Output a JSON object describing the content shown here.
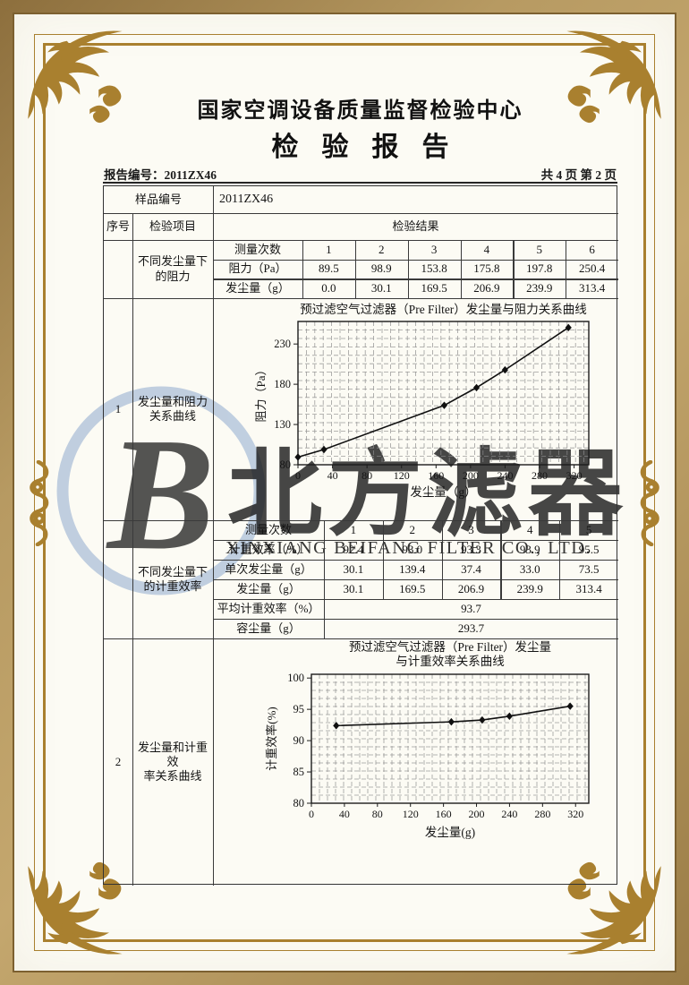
{
  "page": {
    "org_title": "国家空调设备质量监督检验中心",
    "report_title": "检验报告",
    "report_no": "报告编号：2011ZX46",
    "page_info": "共 4 页 第 2 页"
  },
  "table": {
    "sample_no_label": "样品编号",
    "sample_no_value": "2011ZX46",
    "col_seq": "序号",
    "col_item": "检验项目",
    "col_result": "检验结果",
    "sections": [
      {
        "seq": "1",
        "item_top": [
          "不同发尘量下",
          "的阻力"
        ],
        "item_bottom": [
          "发尘量和阻力",
          "关系曲线"
        ]
      },
      {
        "seq": "2",
        "item_top": [
          "不同发尘量下",
          "的计重效率"
        ],
        "item_bottom": [
          "发尘量和计重效",
          "率关系曲线"
        ]
      }
    ],
    "subtable1": {
      "rows": [
        [
          "测量次数",
          "1",
          "2",
          "3",
          "4",
          "5",
          "6"
        ],
        [
          "阻力（Pa）",
          "89.5",
          "98.9",
          "153.8",
          "175.8",
          "197.8",
          "250.4"
        ],
        [
          "发尘量（g）",
          "0.0",
          "30.1",
          "169.5",
          "206.9",
          "239.9",
          "313.4"
        ]
      ]
    },
    "subtable2": {
      "rows": [
        [
          "测量次数",
          "1",
          "2",
          "3",
          "4",
          "5"
        ],
        [
          "计重效率（%）",
          "92.4",
          "93.0",
          "93.3",
          "93.9",
          "95.5"
        ],
        [
          "单次发尘量（g）",
          "30.1",
          "139.4",
          "37.4",
          "33.0",
          "73.5"
        ],
        [
          "发尘量（g）",
          "30.1",
          "169.5",
          "206.9",
          "239.9",
          "313.4"
        ]
      ],
      "merged_rows": [
        {
          "label": "平均计重效率（%）",
          "value": "93.7"
        },
        {
          "label": "容尘量（g）",
          "value": "293.7"
        }
      ]
    }
  },
  "watermark": {
    "logo_letter": "B",
    "cn_text": "北方滤器",
    "en_text": "XINXIANG BEIFANG FILTER CO., LTD.",
    "color": "#a9bed8"
  },
  "chart_data": [
    {
      "type": "line",
      "title_lines": [
        "预过滤空气过滤器（Pre Filter）发尘量与阻力关系曲线"
      ],
      "xlabel": "发尘量（g）",
      "ylabel": "阻力（Pa）",
      "xlim": [
        0,
        337
      ],
      "ylim": [
        80,
        258
      ],
      "xticks": [
        0,
        40,
        80,
        120,
        160,
        200,
        240,
        280,
        320
      ],
      "yticks": [
        80,
        130,
        180,
        230
      ],
      "x": [
        0,
        30.1,
        169.5,
        206.9,
        239.9,
        313.4
      ],
      "y": [
        89.5,
        98.9,
        153.8,
        175.8,
        197.8,
        250.4
      ],
      "grid": true,
      "legend": "none"
    },
    {
      "type": "line",
      "title_lines": [
        "预过滤空气过滤器（Pre Filter）发尘量",
        "与计重效率关系曲线"
      ],
      "xlabel": "发尘量(g)",
      "ylabel": "计重效率(%)",
      "xlim": [
        0,
        336
      ],
      "ylim": [
        80,
        100.6
      ],
      "xticks": [
        0,
        40,
        80,
        120,
        160,
        200,
        240,
        280,
        320
      ],
      "yticks": [
        80,
        85,
        90,
        95,
        100
      ],
      "x": [
        30.1,
        169.5,
        206.9,
        239.9,
        313.4
      ],
      "y": [
        92.4,
        93.0,
        93.3,
        93.9,
        95.5
      ],
      "grid": true,
      "legend": "none"
    }
  ]
}
